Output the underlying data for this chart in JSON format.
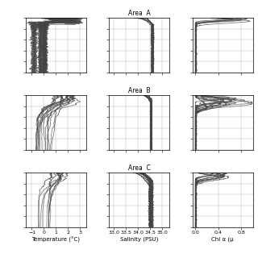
{
  "row_labels": [
    "Area  A",
    "Area  B",
    "Area  C"
  ],
  "temp_xlim": [
    -1.5,
    3.5
  ],
  "temp_xticks": [
    -1.0,
    0.0,
    1.0,
    2.0,
    3.0
  ],
  "sal_xlim": [
    32.8,
    35.3
  ],
  "sal_xticks": [
    33.0,
    33.5,
    34.0,
    34.5,
    35.0
  ],
  "chl_xlim": [
    -0.05,
    1.0
  ],
  "chl_xticks": [
    0.0,
    0.4,
    0.8
  ],
  "line_color": "#444444",
  "grid_color": "#bbbbbb",
  "temp_xlabel": "Temperature (°C)",
  "sal_xlabel": "Salinity (PSU)",
  "chl_xlabel": "Chl α (μ"
}
